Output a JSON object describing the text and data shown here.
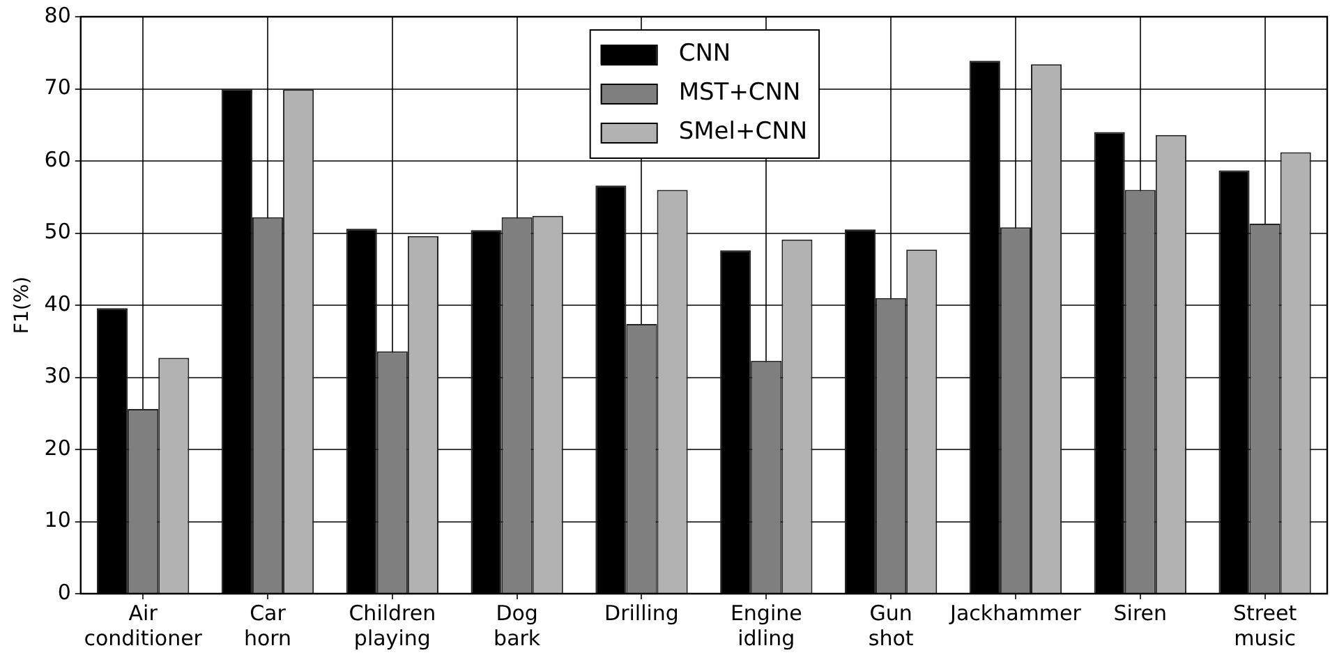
{
  "chart_data": {
    "type": "bar",
    "ylabel": "F1(%)",
    "categories": [
      "Air conditioner",
      "Car horn",
      "Children playing",
      "Dog bark",
      "Drilling",
      "Engine idling",
      "Gun shot",
      "Jackhammer",
      "Siren",
      "Street music"
    ],
    "series": [
      {
        "name": "CNN",
        "color": "#000000",
        "values": [
          39.6,
          70.0,
          50.6,
          50.4,
          56.6,
          47.6,
          50.5,
          73.9,
          64.0,
          58.7
        ]
      },
      {
        "name": "MST+CNN",
        "color": "#7f7f7f",
        "values": [
          25.6,
          52.2,
          33.6,
          52.2,
          37.4,
          32.3,
          41.0,
          50.8,
          56.0,
          51.3
        ]
      },
      {
        "name": "SMel+CNN",
        "color": "#b2b2b2",
        "values": [
          32.7,
          69.9,
          49.6,
          52.4,
          56.0,
          49.1,
          47.7,
          73.4,
          63.6,
          61.2
        ]
      }
    ],
    "ylim": [
      0,
      80
    ],
    "yticks": [
      0,
      10,
      20,
      30,
      40,
      50,
      60,
      70,
      80
    ],
    "grid": true,
    "legend": "top"
  }
}
